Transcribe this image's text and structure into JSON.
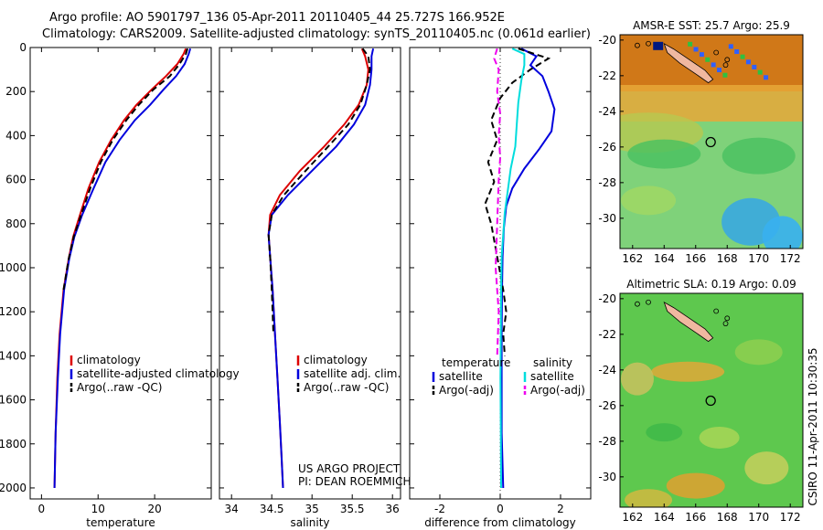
{
  "header": {
    "line1": "Argo profile: AO 5901797_136 05-Apr-2011 20110405_44 25.727S 166.952E",
    "line2": "Climatology: CARS2009. Satellite-adjusted climatology: synTS_20110405.nc (0.061d earlier)"
  },
  "side_text": "CSIRO 11-Apr-2011 10:30:35",
  "project_text": [
    "US ARGO PROJECT",
    "PI: DEAN ROEMMICH"
  ],
  "colors": {
    "climatology": "#dd0000",
    "satellite": "#0000dd",
    "argo": "#000000",
    "sal_satellite": "#00dddd",
    "sal_argo": "#ee00ee"
  },
  "chart_data": [
    {
      "type": "line",
      "xlabel": "temperature",
      "xticks": [
        0,
        10,
        20
      ],
      "xlim": [
        -2,
        30
      ],
      "yticks": [
        0,
        200,
        400,
        600,
        800,
        1000,
        1200,
        1400,
        1600,
        1800,
        2000
      ],
      "ylim": [
        2050,
        0
      ],
      "legend": [
        "climatology",
        "satellite-adjusted climatology",
        "Argo(..raw -QC)"
      ],
      "series": [
        {
          "name": "climatology",
          "color": "#dd0000",
          "x": [
            25.5,
            25.1,
            24.0,
            22.0,
            19.5,
            16.8,
            14.6,
            12.3,
            10.2,
            8.3,
            6.8,
            5.6,
            4.8,
            3.9,
            3.2,
            2.8,
            2.5,
            2.3
          ],
          "y": [
            5,
            30,
            75,
            130,
            190,
            260,
            330,
            420,
            520,
            640,
            760,
            860,
            960,
            1100,
            1300,
            1500,
            1750,
            2000
          ]
        },
        {
          "name": "satellite-adjusted climatology",
          "color": "#0000dd",
          "x": [
            26.3,
            26.0,
            25.3,
            23.8,
            21.6,
            19.2,
            16.5,
            13.8,
            11.3,
            9.2,
            7.2,
            5.8,
            4.9,
            4.0,
            3.3,
            2.9,
            2.5,
            2.3
          ],
          "y": [
            5,
            30,
            75,
            130,
            190,
            260,
            330,
            420,
            520,
            640,
            760,
            860,
            960,
            1100,
            1300,
            1500,
            1750,
            2000
          ]
        },
        {
          "name": "Argo(..raw -QC)",
          "color": "#000000",
          "x": [
            25.8,
            25.5,
            24.4,
            22.7,
            19.8,
            17.2,
            15.0,
            12.6,
            10.5,
            8.6,
            7.0,
            5.7,
            4.8,
            3.9
          ],
          "y": [
            5,
            30,
            75,
            130,
            190,
            260,
            330,
            420,
            520,
            640,
            760,
            860,
            960,
            1100
          ]
        }
      ]
    },
    {
      "type": "line",
      "xlabel": "salinity",
      "xticks": [
        34,
        34.5,
        35,
        35.5,
        36
      ],
      "xlim": [
        33.85,
        36.1
      ],
      "yticks": [
        0,
        200,
        400,
        600,
        800,
        1000,
        1200,
        1400,
        1600,
        1800,
        2000
      ],
      "ylim": [
        2050,
        0
      ],
      "legend": [
        "climatology",
        "satellite adj. clim.",
        "Argo(..raw -QC)"
      ],
      "series": [
        {
          "name": "climatology",
          "color": "#dd0000",
          "x": [
            35.62,
            35.66,
            35.7,
            35.68,
            35.58,
            35.4,
            35.15,
            34.85,
            34.6,
            34.48,
            34.46,
            34.48,
            34.51,
            34.54,
            34.57,
            34.6,
            34.62,
            34.64
          ],
          "y": [
            5,
            40,
            100,
            170,
            260,
            350,
            450,
            560,
            670,
            760,
            850,
            950,
            1100,
            1300,
            1500,
            1700,
            1850,
            2000
          ]
        },
        {
          "name": "satellite adj. clim.",
          "color": "#0000dd",
          "x": [
            35.76,
            35.74,
            35.74,
            35.72,
            35.66,
            35.52,
            35.3,
            35.0,
            34.7,
            34.5,
            34.46,
            34.48,
            34.51,
            34.54,
            34.57,
            34.6,
            34.62,
            34.64
          ],
          "y": [
            5,
            40,
            100,
            170,
            260,
            350,
            450,
            560,
            670,
            760,
            850,
            950,
            1100,
            1300,
            1500,
            1700,
            1850,
            2000
          ]
        },
        {
          "name": "Argo(..raw -QC)",
          "color": "#000000",
          "x": [
            35.63,
            35.7,
            35.72,
            35.68,
            35.6,
            35.45,
            35.2,
            34.92,
            34.65,
            34.5,
            34.46,
            34.48,
            34.5,
            34.52
          ],
          "y": [
            5,
            40,
            100,
            170,
            260,
            350,
            450,
            560,
            670,
            760,
            850,
            950,
            1100,
            1300
          ]
        }
      ]
    },
    {
      "type": "line",
      "xlabel": "difference from climatology",
      "xticks": [
        -2,
        0,
        2
      ],
      "xlim": [
        -3,
        3
      ],
      "yticks": [
        0,
        200,
        400,
        600,
        800,
        1000,
        1200,
        1400,
        1600,
        1800,
        2000
      ],
      "ylim": [
        2050,
        0
      ],
      "legend": [
        "temperature",
        "satellite",
        "Argo(-adj)",
        "salinity",
        "satellite",
        "Argo(-adj)"
      ],
      "series": [
        {
          "name": "temperature satellite",
          "color": "#0000dd",
          "x": [
            0.7,
            1.2,
            1.0,
            1.4,
            1.6,
            1.8,
            1.7,
            1.3,
            0.8,
            0.4,
            0.2,
            0.12,
            0.08,
            0.06,
            0.05,
            0.05,
            0.05,
            0.1
          ],
          "y": [
            5,
            40,
            80,
            130,
            200,
            280,
            380,
            460,
            550,
            640,
            720,
            820,
            950,
            1100,
            1300,
            1500,
            1750,
            2000
          ]
        },
        {
          "name": "temperature Argo(-adj)",
          "color": "#000000",
          "x": [
            0.6,
            1.6,
            1.0,
            0.4,
            0.0,
            -0.3,
            -0.1,
            -0.4,
            -0.2,
            -0.5,
            -0.3,
            -0.1,
            0.1,
            0.2,
            0.1,
            0.15
          ],
          "y": [
            5,
            50,
            100,
            160,
            230,
            330,
            420,
            520,
            610,
            710,
            800,
            950,
            1100,
            1200,
            1300,
            1400
          ]
        },
        {
          "name": "salinity satellite",
          "color": "#00dddd",
          "x": [
            0.4,
            0.8,
            0.8,
            0.7,
            0.6,
            0.55,
            0.5,
            0.35,
            0.25,
            0.15,
            0.1,
            0.05,
            0.03,
            0.02,
            0.01,
            0.02,
            0.03
          ],
          "y": [
            5,
            30,
            80,
            150,
            250,
            350,
            450,
            550,
            650,
            750,
            850,
            950,
            1100,
            1300,
            1500,
            1750,
            2000
          ]
        },
        {
          "name": "salinity Argo(-adj)",
          "color": "#ee00ee",
          "x": [
            -0.1,
            -0.2,
            -0.05,
            -0.1,
            0.0,
            -0.05,
            0.0,
            -0.05,
            -0.1,
            -0.15,
            -0.05,
            -0.1
          ],
          "y": [
            5,
            50,
            100,
            200,
            300,
            400,
            500,
            600,
            800,
            1000,
            1200,
            1400
          ]
        }
      ]
    }
  ],
  "maps": [
    {
      "title": "AMSR-E SST: 25.7 Argo: 25.9",
      "xticks": [
        162,
        164,
        166,
        168,
        170,
        172
      ],
      "yticks": [
        -20,
        -22,
        -24,
        -26,
        -28,
        -30
      ],
      "xlim": [
        161.2,
        172.8
      ],
      "ylim": [
        -19.7,
        -31.7
      ],
      "argo_location": {
        "lon": 166.952,
        "lat": -25.727
      }
    },
    {
      "title": "Altimetric SLA: 0.19 Argo: 0.09",
      "xticks": [
        162,
        164,
        166,
        168,
        170,
        172
      ],
      "yticks": [
        -20,
        -22,
        -24,
        -26,
        -28,
        -30
      ],
      "xlim": [
        161.2,
        172.8
      ],
      "ylim": [
        -19.7,
        -31.7
      ],
      "argo_location": {
        "lon": 166.952,
        "lat": -25.727
      }
    }
  ]
}
